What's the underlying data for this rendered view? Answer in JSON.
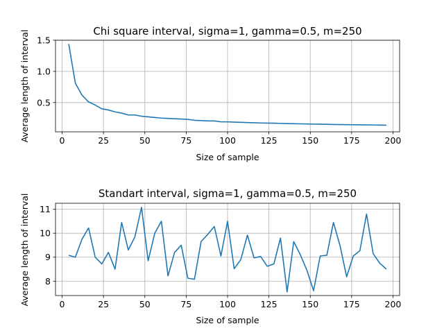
{
  "chart_data": [
    {
      "type": "line",
      "title": "Chi square interval, sigma=1, gamma=0.5, m=250",
      "xlabel": "Size of sample",
      "ylabel": "Average length of interval",
      "xlim": [
        -4,
        204
      ],
      "ylim": [
        0.03,
        1.5
      ],
      "xticks": [
        0,
        25,
        50,
        75,
        100,
        125,
        150,
        175,
        200
      ],
      "yticks": [
        0.5,
        1.0,
        1.5
      ],
      "ytick_labels": [
        "0.5",
        "1.0",
        "1.5"
      ],
      "grid": true,
      "color": "#1f77b4",
      "x": [
        4,
        8,
        12,
        16,
        20,
        24,
        28,
        32,
        36,
        40,
        44,
        48,
        52,
        56,
        60,
        64,
        68,
        72,
        76,
        80,
        84,
        88,
        92,
        96,
        100,
        104,
        108,
        112,
        116,
        120,
        124,
        128,
        132,
        136,
        140,
        144,
        148,
        152,
        156,
        160,
        164,
        168,
        172,
        176,
        180,
        184,
        188,
        192,
        196
      ],
      "y": [
        1.44,
        0.81,
        0.62,
        0.51,
        0.46,
        0.4,
        0.38,
        0.35,
        0.33,
        0.3,
        0.3,
        0.28,
        0.27,
        0.26,
        0.25,
        0.245,
        0.24,
        0.235,
        0.23,
        0.215,
        0.21,
        0.205,
        0.205,
        0.19,
        0.19,
        0.185,
        0.182,
        0.178,
        0.175,
        0.172,
        0.17,
        0.168,
        0.165,
        0.162,
        0.16,
        0.158,
        0.156,
        0.154,
        0.152,
        0.15,
        0.148,
        0.146,
        0.145,
        0.143,
        0.142,
        0.141,
        0.14,
        0.138,
        0.136
      ]
    },
    {
      "type": "line",
      "title": "Standart interval, sigma=1, gamma=0.5, m=250",
      "xlabel": "Size of sample",
      "ylabel": "Average length of interval",
      "xlim": [
        -4,
        204
      ],
      "ylim": [
        7.4,
        11.25
      ],
      "xticks": [
        0,
        25,
        50,
        75,
        100,
        125,
        150,
        175,
        200
      ],
      "yticks": [
        8,
        9,
        10,
        11
      ],
      "ytick_labels": [
        "8",
        "9",
        "10",
        "11"
      ],
      "grid": true,
      "color": "#1f77b4",
      "x": [
        4,
        8,
        12,
        16,
        20,
        24,
        28,
        32,
        36,
        40,
        44,
        48,
        52,
        56,
        60,
        64,
        68,
        72,
        76,
        80,
        84,
        88,
        92,
        96,
        100,
        104,
        108,
        112,
        116,
        120,
        124,
        128,
        132,
        136,
        140,
        144,
        148,
        152,
        156,
        160,
        164,
        168,
        172,
        176,
        180,
        184,
        188,
        192,
        196
      ],
      "y": [
        9.08,
        9.0,
        9.75,
        10.22,
        9.0,
        8.72,
        9.2,
        8.5,
        10.45,
        9.3,
        9.85,
        11.08,
        8.85,
        10.0,
        10.5,
        8.22,
        9.2,
        9.5,
        8.12,
        8.08,
        9.65,
        9.95,
        10.28,
        9.05,
        10.5,
        8.52,
        8.9,
        9.92,
        8.97,
        9.03,
        8.62,
        8.72,
        9.8,
        7.55,
        9.65,
        9.1,
        8.45,
        7.6,
        9.05,
        9.08,
        10.45,
        9.48,
        8.18,
        9.05,
        9.27,
        10.8,
        9.15,
        8.75,
        8.5
      ]
    }
  ]
}
